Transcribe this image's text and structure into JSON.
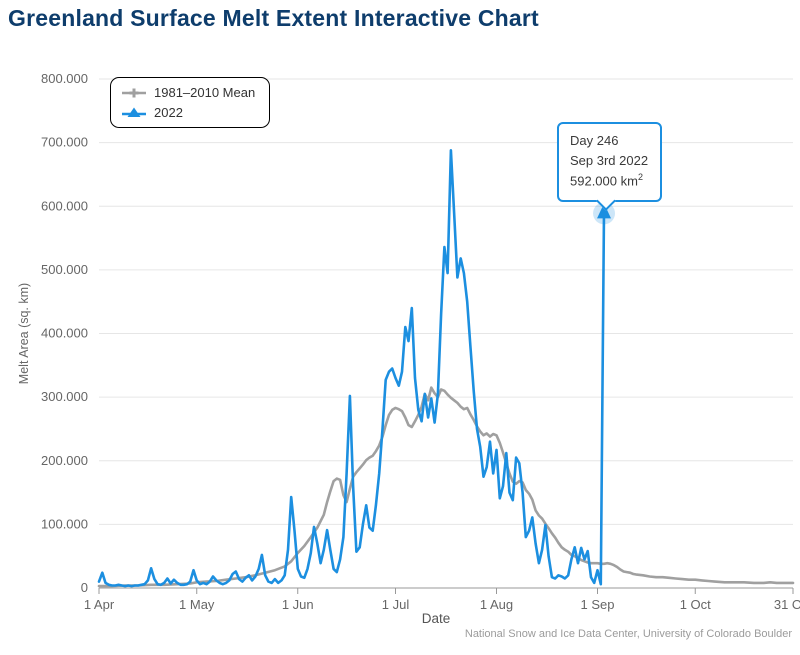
{
  "page": {
    "title": "Greenland Surface Melt Extent Interactive Chart",
    "attribution": "National Snow and Ice Data Center, University of Colorado Boulder"
  },
  "colors": {
    "title": "#0e3d6c",
    "grid": "#e6e6e6",
    "axis": "#999999",
    "tick_label": "#666666",
    "axis_title": "#666666",
    "mean_line": "#a0a0a0",
    "year_line": "#1c8fe0",
    "tooltip_border": "#1c8fe0",
    "attribution_text": "#9b9b9b"
  },
  "legend": {
    "items": [
      {
        "label": "1981–2010 Mean",
        "color": "#a0a0a0",
        "marker": "plus"
      },
      {
        "label": "2022",
        "color": "#1c8fe0",
        "marker": "triangle-up"
      }
    ]
  },
  "tooltip": {
    "line1": "Day 246",
    "line2": "Sep 3rd 2022",
    "value": "592.000 km",
    "value_sup": "2"
  },
  "chart_data": {
    "type": "line",
    "xlabel": "Date",
    "ylabel": "Melt Area (sq. km)",
    "x_unit": "day_of_year",
    "value_unit": "thousand sq. km",
    "xlim_days": [
      91,
      304
    ],
    "ylim": [
      0,
      800
    ],
    "grid": "horizontal",
    "legend_position": "top-left",
    "y_ticks": {
      "values": [
        0,
        100,
        200,
        300,
        400,
        500,
        600,
        700,
        800
      ],
      "labels": [
        "0",
        "100.000",
        "200.000",
        "300.000",
        "400.000",
        "500.000",
        "600.000",
        "700.000",
        "800.000"
      ]
    },
    "x_ticks": {
      "days": [
        91,
        121,
        152,
        182,
        213,
        244,
        274,
        304
      ],
      "labels": [
        "1 Apr",
        "1 May",
        "1 Jun",
        "1 Jul",
        "1 Aug",
        "1 Sep",
        "1 Oct",
        "31 Oct"
      ]
    },
    "highlight": {
      "series": "2022",
      "day": 246,
      "value": 592
    },
    "series": [
      {
        "name": "1981–2010 Mean",
        "color": "#a0a0a0",
        "points": [
          [
            91,
            3
          ],
          [
            95,
            3
          ],
          [
            99,
            4
          ],
          [
            103,
            4
          ],
          [
            107,
            5
          ],
          [
            111,
            5
          ],
          [
            115,
            6
          ],
          [
            119,
            7
          ],
          [
            121,
            9
          ],
          [
            124,
            10
          ],
          [
            127,
            11
          ],
          [
            130,
            13
          ],
          [
            133,
            15
          ],
          [
            136,
            17
          ],
          [
            139,
            20
          ],
          [
            142,
            24
          ],
          [
            145,
            28
          ],
          [
            148,
            34
          ],
          [
            150,
            42
          ],
          [
            152,
            55
          ],
          [
            154,
            66
          ],
          [
            156,
            80
          ],
          [
            158,
            95
          ],
          [
            160,
            115
          ],
          [
            161,
            135
          ],
          [
            162,
            152
          ],
          [
            163,
            168
          ],
          [
            164,
            172
          ],
          [
            165,
            170
          ],
          [
            166,
            146
          ],
          [
            167,
            135
          ],
          [
            168,
            156
          ],
          [
            169,
            175
          ],
          [
            170,
            182
          ],
          [
            171,
            188
          ],
          [
            172,
            194
          ],
          [
            173,
            201
          ],
          [
            174,
            205
          ],
          [
            175,
            208
          ],
          [
            176,
            215
          ],
          [
            177,
            224
          ],
          [
            178,
            238
          ],
          [
            179,
            256
          ],
          [
            180,
            272
          ],
          [
            181,
            280
          ],
          [
            182,
            283
          ],
          [
            183,
            281
          ],
          [
            184,
            278
          ],
          [
            185,
            268
          ],
          [
            186,
            256
          ],
          [
            187,
            253
          ],
          [
            188,
            262
          ],
          [
            189,
            272
          ],
          [
            190,
            285
          ],
          [
            191,
            305
          ],
          [
            192,
            295
          ],
          [
            193,
            315
          ],
          [
            194,
            306
          ],
          [
            195,
            300
          ],
          [
            196,
            312
          ],
          [
            197,
            310
          ],
          [
            198,
            304
          ],
          [
            199,
            299
          ],
          [
            200,
            295
          ],
          [
            201,
            291
          ],
          [
            202,
            285
          ],
          [
            203,
            281
          ],
          [
            204,
            283
          ],
          [
            205,
            273
          ],
          [
            206,
            264
          ],
          [
            207,
            254
          ],
          [
            208,
            246
          ],
          [
            209,
            240
          ],
          [
            210,
            243
          ],
          [
            211,
            238
          ],
          [
            212,
            242
          ],
          [
            213,
            240
          ],
          [
            214,
            228
          ],
          [
            215,
            213
          ],
          [
            216,
            196
          ],
          [
            217,
            180
          ],
          [
            218,
            167
          ],
          [
            219,
            164
          ],
          [
            220,
            168
          ],
          [
            221,
            166
          ],
          [
            222,
            154
          ],
          [
            223,
            148
          ],
          [
            224,
            139
          ],
          [
            225,
            122
          ],
          [
            226,
            114
          ],
          [
            227,
            109
          ],
          [
            228,
            101
          ],
          [
            229,
            94
          ],
          [
            230,
            86
          ],
          [
            231,
            79
          ],
          [
            232,
            71
          ],
          [
            233,
            64
          ],
          [
            234,
            60
          ],
          [
            235,
            57
          ],
          [
            236,
            52
          ],
          [
            237,
            50
          ],
          [
            238,
            47
          ],
          [
            239,
            44
          ],
          [
            240,
            42
          ],
          [
            241,
            40
          ],
          [
            242,
            39
          ],
          [
            243,
            39
          ],
          [
            244,
            39
          ],
          [
            245,
            38
          ],
          [
            246,
            38
          ],
          [
            247,
            39
          ],
          [
            248,
            38
          ],
          [
            249,
            36
          ],
          [
            250,
            33
          ],
          [
            251,
            29
          ],
          [
            252,
            26
          ],
          [
            253,
            25
          ],
          [
            254,
            24
          ],
          [
            255,
            22
          ],
          [
            256,
            21
          ],
          [
            258,
            20
          ],
          [
            260,
            18
          ],
          [
            262,
            17
          ],
          [
            264,
            17
          ],
          [
            266,
            16
          ],
          [
            268,
            15
          ],
          [
            270,
            14
          ],
          [
            272,
            13
          ],
          [
            274,
            13
          ],
          [
            276,
            12
          ],
          [
            278,
            11
          ],
          [
            280,
            10
          ],
          [
            283,
            9
          ],
          [
            286,
            9
          ],
          [
            289,
            9
          ],
          [
            292,
            8
          ],
          [
            295,
            8
          ],
          [
            297,
            9
          ],
          [
            299,
            8
          ],
          [
            301,
            8
          ],
          [
            304,
            8
          ]
        ]
      },
      {
        "name": "2022",
        "color": "#1c8fe0",
        "points": [
          [
            91,
            10
          ],
          [
            92,
            24
          ],
          [
            93,
            8
          ],
          [
            94,
            5
          ],
          [
            95,
            4
          ],
          [
            96,
            4
          ],
          [
            97,
            5
          ],
          [
            98,
            4
          ],
          [
            99,
            3
          ],
          [
            100,
            4
          ],
          [
            101,
            3
          ],
          [
            102,
            4
          ],
          [
            103,
            4
          ],
          [
            104,
            5
          ],
          [
            105,
            6
          ],
          [
            106,
            12
          ],
          [
            107,
            31
          ],
          [
            108,
            14
          ],
          [
            109,
            6
          ],
          [
            110,
            5
          ],
          [
            111,
            8
          ],
          [
            112,
            15
          ],
          [
            113,
            7
          ],
          [
            114,
            13
          ],
          [
            115,
            8
          ],
          [
            116,
            5
          ],
          [
            117,
            5
          ],
          [
            118,
            6
          ],
          [
            119,
            10
          ],
          [
            120,
            28
          ],
          [
            121,
            12
          ],
          [
            122,
            6
          ],
          [
            123,
            8
          ],
          [
            124,
            6
          ],
          [
            125,
            10
          ],
          [
            126,
            18
          ],
          [
            127,
            12
          ],
          [
            128,
            8
          ],
          [
            129,
            6
          ],
          [
            130,
            8
          ],
          [
            131,
            12
          ],
          [
            132,
            22
          ],
          [
            133,
            26
          ],
          [
            134,
            14
          ],
          [
            135,
            10
          ],
          [
            136,
            16
          ],
          [
            137,
            20
          ],
          [
            138,
            12
          ],
          [
            139,
            18
          ],
          [
            140,
            30
          ],
          [
            141,
            52
          ],
          [
            142,
            20
          ],
          [
            143,
            10
          ],
          [
            144,
            8
          ],
          [
            145,
            14
          ],
          [
            146,
            8
          ],
          [
            147,
            12
          ],
          [
            148,
            20
          ],
          [
            149,
            60
          ],
          [
            150,
            143
          ],
          [
            151,
            90
          ],
          [
            152,
            30
          ],
          [
            153,
            18
          ],
          [
            154,
            16
          ],
          [
            155,
            30
          ],
          [
            156,
            55
          ],
          [
            157,
            96
          ],
          [
            158,
            70
          ],
          [
            159,
            39
          ],
          [
            160,
            60
          ],
          [
            161,
            91
          ],
          [
            162,
            60
          ],
          [
            163,
            30
          ],
          [
            164,
            25
          ],
          [
            165,
            45
          ],
          [
            166,
            80
          ],
          [
            167,
            180
          ],
          [
            168,
            302
          ],
          [
            169,
            160
          ],
          [
            170,
            57
          ],
          [
            171,
            64
          ],
          [
            172,
            100
          ],
          [
            173,
            130
          ],
          [
            174,
            95
          ],
          [
            175,
            90
          ],
          [
            176,
            130
          ],
          [
            177,
            180
          ],
          [
            178,
            250
          ],
          [
            179,
            327
          ],
          [
            180,
            340
          ],
          [
            181,
            345
          ],
          [
            182,
            330
          ],
          [
            183,
            318
          ],
          [
            184,
            340
          ],
          [
            185,
            410
          ],
          [
            186,
            388
          ],
          [
            187,
            440
          ],
          [
            188,
            330
          ],
          [
            189,
            280
          ],
          [
            190,
            262
          ],
          [
            191,
            305
          ],
          [
            192,
            268
          ],
          [
            193,
            298
          ],
          [
            194,
            260
          ],
          [
            195,
            305
          ],
          [
            196,
            430
          ],
          [
            197,
            536
          ],
          [
            198,
            495
          ],
          [
            199,
            688
          ],
          [
            200,
            590
          ],
          [
            201,
            488
          ],
          [
            202,
            518
          ],
          [
            203,
            495
          ],
          [
            204,
            450
          ],
          [
            205,
            380
          ],
          [
            206,
            310
          ],
          [
            207,
            250
          ],
          [
            208,
            222
          ],
          [
            209,
            175
          ],
          [
            210,
            190
          ],
          [
            211,
            230
          ],
          [
            212,
            180
          ],
          [
            213,
            217
          ],
          [
            214,
            141
          ],
          [
            215,
            160
          ],
          [
            216,
            212
          ],
          [
            217,
            150
          ],
          [
            218,
            138
          ],
          [
            219,
            205
          ],
          [
            220,
            196
          ],
          [
            221,
            150
          ],
          [
            222,
            80
          ],
          [
            223,
            90
          ],
          [
            224,
            111
          ],
          [
            225,
            70
          ],
          [
            226,
            39
          ],
          [
            227,
            60
          ],
          [
            228,
            99
          ],
          [
            229,
            50
          ],
          [
            230,
            17
          ],
          [
            231,
            15
          ],
          [
            232,
            20
          ],
          [
            233,
            18
          ],
          [
            234,
            15
          ],
          [
            235,
            20
          ],
          [
            236,
            45
          ],
          [
            237,
            64
          ],
          [
            238,
            39
          ],
          [
            239,
            63
          ],
          [
            240,
            45
          ],
          [
            241,
            58
          ],
          [
            242,
            17
          ],
          [
            243,
            8
          ],
          [
            244,
            28
          ],
          [
            245,
            6
          ],
          [
            246,
            592
          ]
        ]
      }
    ]
  }
}
